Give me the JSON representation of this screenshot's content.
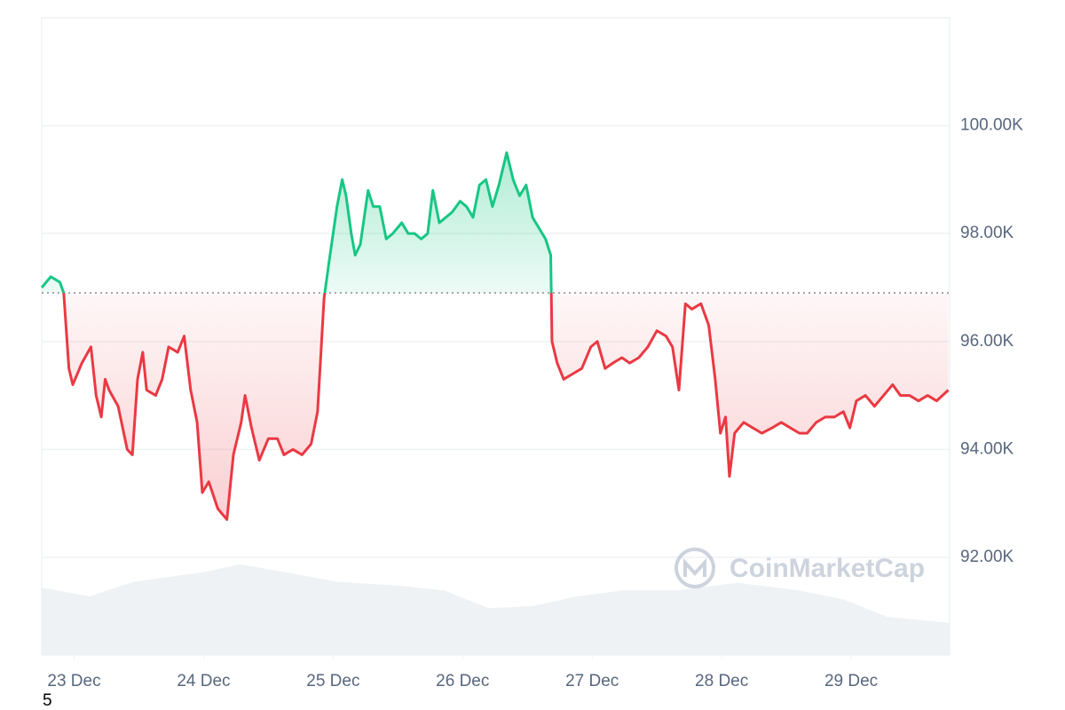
{
  "chart_data": {
    "type": "line",
    "baseline": 96900,
    "ylim": [
      90190,
      102000
    ],
    "yticks": [
      {
        "value": 92000,
        "label": "92.00K"
      },
      {
        "value": 94000,
        "label": "94.00K"
      },
      {
        "value": 96000,
        "label": "96.00K"
      },
      {
        "value": 98000,
        "label": "98.00K"
      },
      {
        "value": 100000,
        "label": "100.00K"
      }
    ],
    "xlim": [
      22.75,
      29.76
    ],
    "xticks": [
      {
        "value": 23,
        "label": "23 Dec"
      },
      {
        "value": 24,
        "label": "24 Dec"
      },
      {
        "value": 25,
        "label": "25 Dec"
      },
      {
        "value": 26,
        "label": "26 Dec"
      },
      {
        "value": 27,
        "label": "27 Dec"
      },
      {
        "value": 28,
        "label": "28 Dec"
      },
      {
        "value": 29,
        "label": "29 Dec"
      }
    ],
    "grid": true,
    "up_color": "#16c784",
    "down_color": "#ea3943",
    "price": {
      "x": [
        22.75,
        22.82,
        22.89,
        22.92,
        22.96,
        22.99,
        23.06,
        23.13,
        23.17,
        23.21,
        23.24,
        23.27,
        23.34,
        23.41,
        23.45,
        23.49,
        23.53,
        23.56,
        23.63,
        23.68,
        23.73,
        23.8,
        23.85,
        23.9,
        23.95,
        23.99,
        24.04,
        24.11,
        24.18,
        24.23,
        24.29,
        24.32,
        24.37,
        24.43,
        24.5,
        24.57,
        24.62,
        24.69,
        24.76,
        24.83,
        24.88,
        24.93,
        24.97,
        25.0,
        25.03,
        25.07,
        25.1,
        25.14,
        25.17,
        25.21,
        25.24,
        25.27,
        25.31,
        25.36,
        25.41,
        25.46,
        25.53,
        25.58,
        25.63,
        25.68,
        25.73,
        25.77,
        25.82,
        25.87,
        25.92,
        25.98,
        26.03,
        26.08,
        26.13,
        26.18,
        26.23,
        26.28,
        26.34,
        26.39,
        26.44,
        26.49,
        26.54,
        26.59,
        26.64,
        26.68,
        26.69,
        26.73,
        26.78,
        26.85,
        26.92,
        26.99,
        27.04,
        27.1,
        27.16,
        27.23,
        27.29,
        27.36,
        27.43,
        27.5,
        27.57,
        27.62,
        27.67,
        27.72,
        27.77,
        27.84,
        27.9,
        27.95,
        27.99,
        28.03,
        28.06,
        28.1,
        28.17,
        28.24,
        28.31,
        28.39,
        28.46,
        28.53,
        28.6,
        28.66,
        28.73,
        28.8,
        28.87,
        28.94,
        28.99,
        29.04,
        29.11,
        29.18,
        29.25,
        29.32,
        29.38,
        29.45,
        29.52,
        29.59,
        29.66,
        29.75
      ],
      "values": [
        97000,
        97200,
        97100,
        96900,
        95500,
        95200,
        95600,
        95900,
        95000,
        94600,
        95300,
        95100,
        94800,
        94000,
        93900,
        95300,
        95800,
        95100,
        95000,
        95300,
        95900,
        95800,
        96100,
        95100,
        94500,
        93200,
        93400,
        92900,
        92700,
        93900,
        94500,
        95000,
        94400,
        93800,
        94200,
        94200,
        93900,
        94000,
        93900,
        94100,
        94700,
        96800,
        97500,
        98000,
        98500,
        99000,
        98700,
        98000,
        97600,
        97800,
        98300,
        98800,
        98500,
        98500,
        97900,
        98000,
        98200,
        98000,
        98000,
        97900,
        98000,
        98800,
        98200,
        98300,
        98400,
        98600,
        98500,
        98300,
        98900,
        99000,
        98500,
        98900,
        99500,
        99000,
        98700,
        98900,
        98300,
        98100,
        97900,
        97600,
        96000,
        95600,
        95300,
        95400,
        95500,
        95900,
        96000,
        95500,
        95600,
        95700,
        95600,
        95700,
        95900,
        96200,
        96100,
        95900,
        95100,
        96700,
        96600,
        96700,
        96300,
        95300,
        94300,
        94600,
        93500,
        94300,
        94500,
        94400,
        94300,
        94400,
        94500,
        94400,
        94300,
        94300,
        94500,
        94600,
        94600,
        94700,
        94400,
        94900,
        95000,
        94800,
        95000,
        95200,
        95000,
        95000,
        94900,
        95000,
        94900,
        95100
      ]
    },
    "volume": {
      "color": "#eff2f5",
      "vlim": [
        0,
        100
      ],
      "x": [
        22.75,
        23.12,
        23.46,
        24.01,
        24.28,
        24.62,
        25.03,
        25.51,
        25.86,
        26.2,
        26.54,
        26.88,
        27.23,
        27.64,
        28.12,
        28.6,
        28.94,
        29.28,
        29.76
      ],
      "values": [
        69,
        60,
        75,
        85,
        93,
        85,
        75,
        71,
        66,
        48,
        50,
        60,
        66,
        66,
        74,
        66,
        57,
        39,
        33
      ]
    },
    "watermark": "CoinMarketCap",
    "footnote": "5"
  }
}
